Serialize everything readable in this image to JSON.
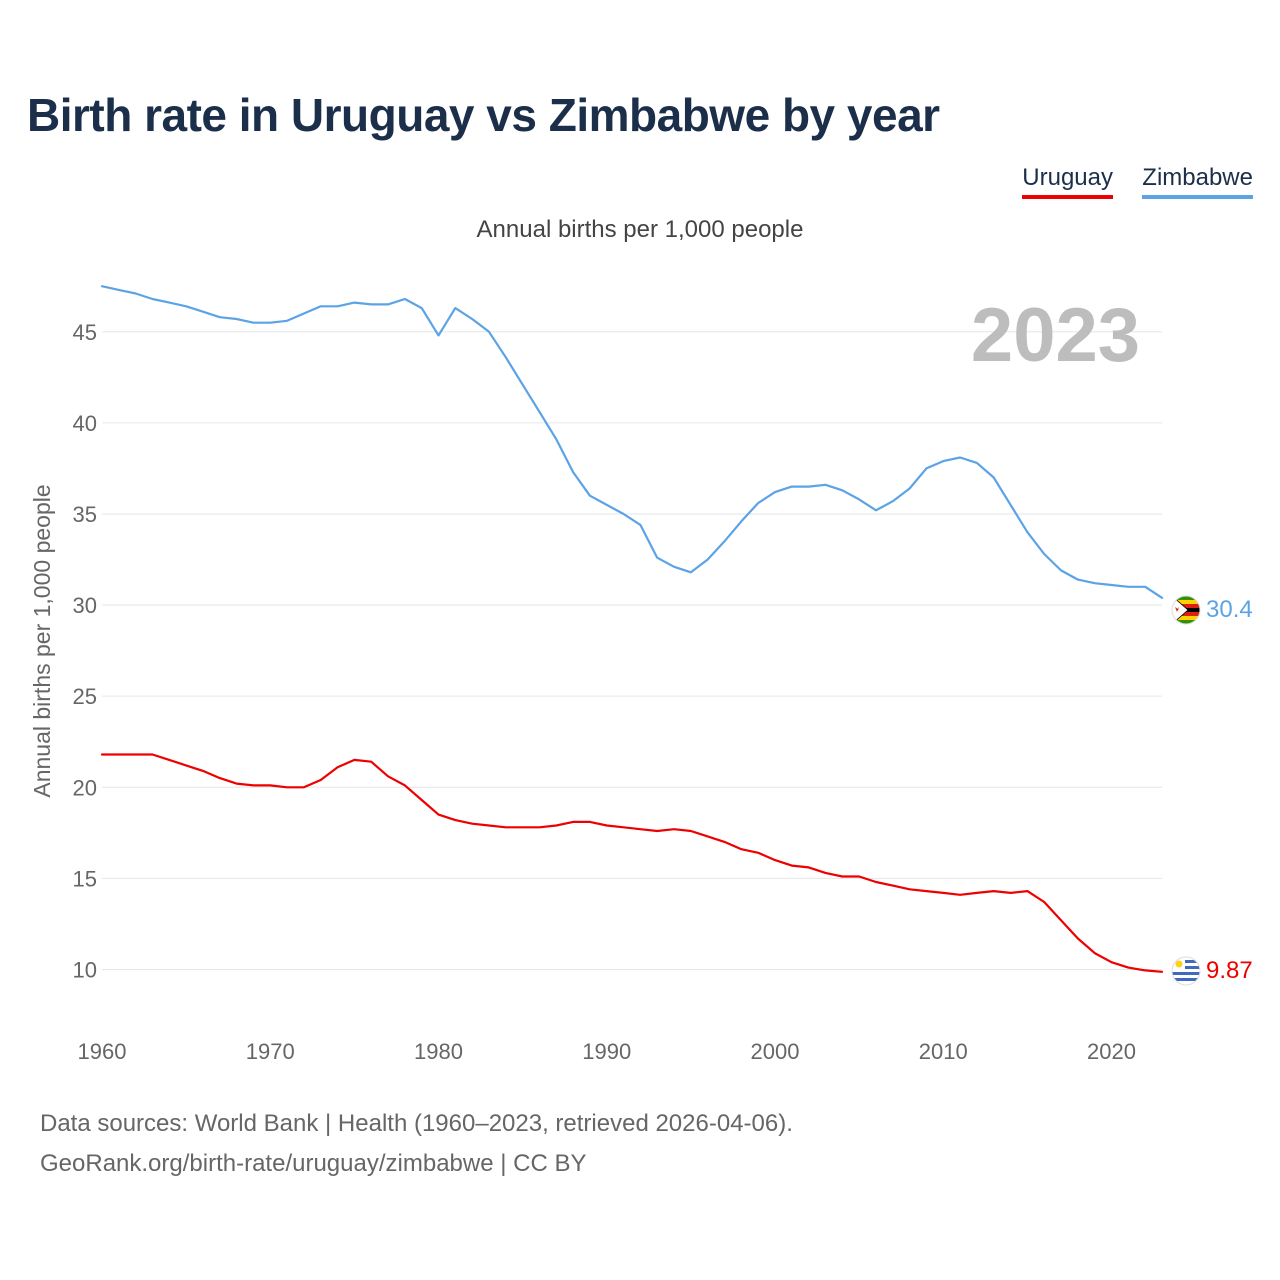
{
  "title": "Birth rate in Uruguay vs Zimbabwe by year",
  "subtitle": "Annual births per 1,000 people",
  "legend": {
    "uruguay": "Uruguay",
    "zimbabwe": "Zimbabwe"
  },
  "footer": {
    "line1": "Data sources: World Bank | Health (1960–2023, retrieved 2026-04-06).",
    "line2": "GeoRank.org/birth-rate/uruguay/zimbabwe | CC BY"
  },
  "colors": {
    "uruguay": "#ee0000",
    "zimbabwe": "#5ba3e6",
    "grid": "#e6e6e6",
    "year": "#bdbdbd"
  },
  "icons": {
    "uruguay_marker": "uruguay-flag-icon",
    "zimbabwe_marker": "zimbabwe-flag-icon"
  },
  "chart_data": {
    "type": "line",
    "title": "Birth rate in Uruguay vs Zimbabwe by year",
    "subtitle": "Annual births per 1,000 people",
    "ylabel": "Annual births per 1,000 people",
    "xlabel": "",
    "xlim": [
      1960,
      2023
    ],
    "ylim": [
      7.5,
      48.5
    ],
    "xticks": [
      1960,
      1970,
      1980,
      1990,
      2000,
      2010,
      2020
    ],
    "yticks": [
      10,
      15,
      20,
      25,
      30,
      35,
      40,
      45
    ],
    "grid": true,
    "legend_position": "top-right",
    "year_label": "2023",
    "x": [
      1960,
      1961,
      1962,
      1963,
      1964,
      1965,
      1966,
      1967,
      1968,
      1969,
      1970,
      1971,
      1972,
      1973,
      1974,
      1975,
      1976,
      1977,
      1978,
      1979,
      1980,
      1981,
      1982,
      1983,
      1984,
      1985,
      1986,
      1987,
      1988,
      1989,
      1990,
      1991,
      1992,
      1993,
      1994,
      1995,
      1996,
      1997,
      1998,
      1999,
      2000,
      2001,
      2002,
      2003,
      2004,
      2005,
      2006,
      2007,
      2008,
      2009,
      2010,
      2011,
      2012,
      2013,
      2014,
      2015,
      2016,
      2017,
      2018,
      2019,
      2020,
      2021,
      2022,
      2023
    ],
    "series": [
      {
        "name": "Uruguay",
        "color": "#ee0000",
        "end_label": "9.87",
        "values": [
          21.8,
          21.8,
          21.8,
          21.8,
          21.5,
          21.2,
          20.9,
          20.5,
          20.2,
          20.1,
          20.1,
          20.0,
          20.0,
          20.4,
          21.1,
          21.5,
          21.4,
          20.6,
          20.1,
          19.3,
          18.5,
          18.2,
          18.0,
          17.9,
          17.8,
          17.8,
          17.8,
          17.9,
          18.1,
          18.1,
          17.9,
          17.8,
          17.7,
          17.6,
          17.7,
          17.6,
          17.3,
          17.0,
          16.6,
          16.4,
          16.0,
          15.7,
          15.6,
          15.3,
          15.1,
          15.1,
          14.8,
          14.6,
          14.4,
          14.3,
          14.2,
          14.1,
          14.2,
          14.3,
          14.2,
          14.3,
          13.7,
          12.7,
          11.7,
          10.9,
          10.4,
          10.1,
          9.95,
          9.87
        ]
      },
      {
        "name": "Zimbabwe",
        "color": "#5ba3e6",
        "end_label": "30.4",
        "values": [
          47.5,
          47.3,
          47.1,
          46.8,
          46.6,
          46.4,
          46.1,
          45.8,
          45.7,
          45.5,
          45.5,
          45.6,
          46.0,
          46.4,
          46.4,
          46.6,
          46.5,
          46.5,
          46.8,
          46.3,
          44.8,
          46.3,
          45.7,
          45.0,
          43.6,
          42.1,
          40.6,
          39.1,
          37.3,
          36.0,
          35.5,
          35.0,
          34.4,
          32.6,
          32.1,
          31.8,
          32.5,
          33.5,
          34.6,
          35.6,
          36.2,
          36.5,
          36.5,
          36.6,
          36.3,
          35.8,
          35.2,
          35.7,
          36.4,
          37.5,
          37.9,
          38.1,
          37.8,
          37.0,
          35.5,
          34.0,
          32.8,
          31.9,
          31.4,
          31.2,
          31.1,
          31.0,
          31.0,
          30.4
        ]
      }
    ]
  }
}
